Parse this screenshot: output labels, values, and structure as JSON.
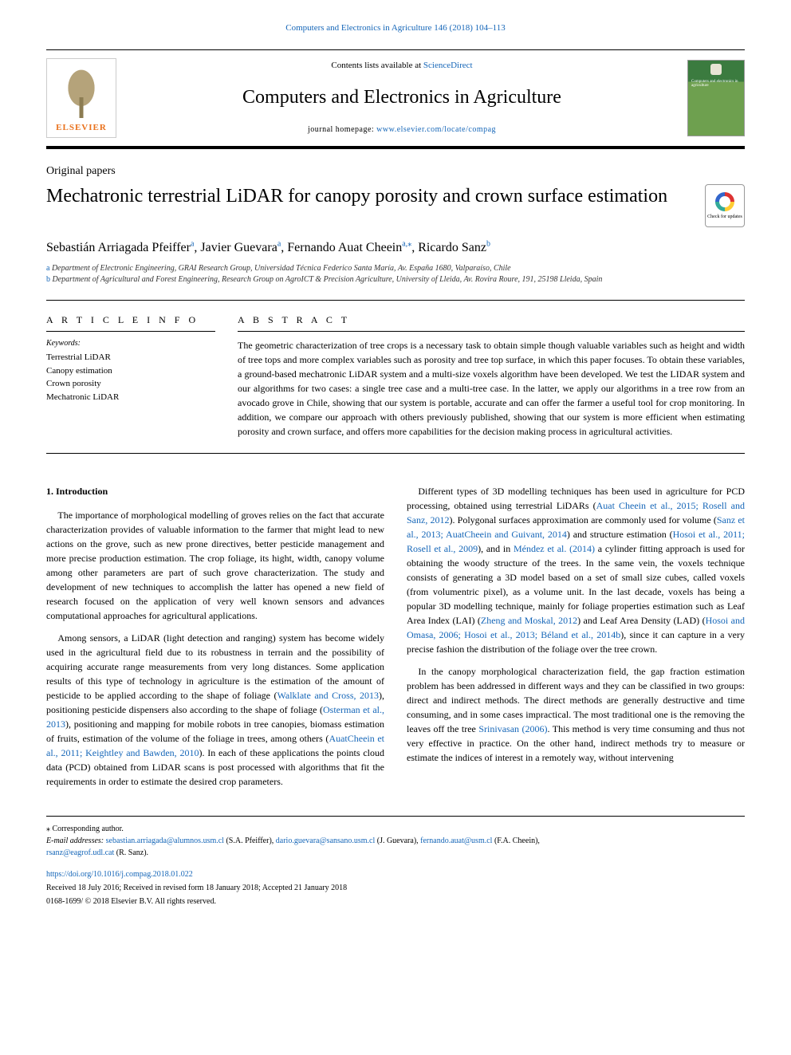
{
  "citation_line": "Computers and Electronics in Agriculture 146 (2018) 104–113",
  "header": {
    "contents_prefix": "Contents lists available at ",
    "contents_link": "ScienceDirect",
    "journal_title": "Computers and Electronics in Agriculture",
    "homepage_prefix": "journal homepage: ",
    "homepage_link": "www.elsevier.com/locate/compag",
    "elsevier_label": "ELSEVIER",
    "cover_text": "Computers and electronics in agriculture"
  },
  "article_type": "Original papers",
  "title": "Mechatronic terrestrial LiDAR for canopy porosity and crown surface estimation",
  "crossmark_label": "Check for updates",
  "authors_html": "Sebastián Arriagada Pfeiffer<sup class='sup'>a</sup>, Javier Guevara<sup class='sup'>a</sup>, Fernando Auat Cheein<sup class='sup'>a,</sup><sup class='sup'>⁎</sup>, Ricardo Sanz<sup class='sup'>b</sup>",
  "affiliations": {
    "a": "Department of Electronic Engineering, GRAI Research Group, Universidad Técnica Federico Santa María, Av. España 1680, Valparaíso, Chile",
    "b": "Department of Agricultural and Forest Engineering, Research Group on AgroICT & Precision Agriculture, University of Lleida, Av. Rovira Roure, 191, 25198 Lleida, Spain"
  },
  "info_heading": "A R T I C L E  I N F O",
  "keywords_label": "Keywords:",
  "keywords": [
    "Terrestrial LiDAR",
    "Canopy estimation",
    "Crown porosity",
    "Mechatronic LiDAR"
  ],
  "abstract_heading": "A B S T R A C T",
  "abstract": "The geometric characterization of tree crops is a necessary task to obtain simple though valuable variables such as height and width of tree tops and more complex variables such as porosity and tree top surface, in which this paper focuses. To obtain these variables, a ground-based mechatronic LiDAR system and a multi-size voxels algorithm have been developed. We test the LIDAR system and our algorithms for two cases: a single tree case and a multi-tree case. In the latter, we apply our algorithms in a tree row from an avocado grove in Chile, showing that our system is portable, accurate and can offer the farmer a useful tool for crop monitoring. In addition, we compare our approach with others previously published, showing that our system is more efficient when estimating porosity and crown surface, and offers more capabilities for the decision making process in agricultural activities.",
  "section1_heading": "1. Introduction",
  "para1": "The importance of morphological modelling of groves relies on the fact that accurate characterization provides of valuable information to the farmer that might lead to new actions on the grove, such as new prone directives, better pesticide management and more precise production estimation. The crop foliage, its hight, width, canopy volume among other parameters are part of such grove characterization. The study and development of new techniques to accomplish the latter has opened a new field of research focused on the application of very well known sensors and advances computational approaches for agricultural applications.",
  "para2_pre": "Among sensors, a LiDAR (light detection and ranging) system has become widely used in the agricultural field due to its robustness in terrain and the possibility of acquiring accurate range measurements from very long distances. Some application results of this type of technology in agriculture is the estimation of the amount of pesticide to be applied according to the shape of foliage (",
  "para2_c1": "Walklate and Cross, 2013",
  "para2_mid1": "), positioning pesticide dispensers also according to the shape of foliage (",
  "para2_c2": "Osterman et al., 2013",
  "para2_mid2": "), positioning and mapping for mobile robots in tree canopies, biomass estimation of fruits, estimation of the volume of the foliage in trees, among others (",
  "para2_c3": "AuatCheein et al., 2011; Keightley and Bawden, 2010",
  "para2_post": "). In each of these applications the points cloud data (PCD) obtained from LiDAR scans is post processed with algorithms that fit the requirements in order to estimate the desired crop parameters.",
  "para3_pre": "Different types of 3D modelling techniques has been used in agriculture for PCD processing, obtained using terrestrial LiDARs (",
  "para3_c1": "Auat Cheein et al., 2015; Rosell and Sanz, 2012",
  "para3_mid1": "). Polygonal surfaces approximation are commonly used for volume (",
  "para3_c2": "Sanz et al., 2013; AuatCheein and Guivant, 2014",
  "para3_mid2": ") and structure estimation (",
  "para3_c3": "Hosoi et al., 2011; Rosell et al., 2009",
  "para3_mid3": "), and in ",
  "para3_c4": "Méndez et al. (2014)",
  "para3_mid4": " a cylinder fitting approach is used for obtaining the woody structure of the trees. In the same vein, the voxels technique consists of generating a 3D model based on a set of small size cubes, called voxels (from volumentric pixel), as a volume unit. In the last decade, voxels has being a popular 3D modelling technique, mainly for foliage properties estimation such as Leaf Area Index (LAI) (",
  "para3_c5": "Zheng and Moskal, 2012",
  "para3_mid5": ") and Leaf Area Density (LAD) (",
  "para3_c6": "Hosoi and Omasa, 2006; Hosoi et al., 2013; Béland et al., 2014b",
  "para3_post": "), since it can capture in a very precise fashion the distribution of the foliage over the tree crown.",
  "para4_pre": "In the canopy morphological characterization field, the gap fraction estimation problem has been addressed in different ways and they can be classified in two groups: direct and indirect methods. The direct methods are generally destructive and time consuming, and in some cases impractical. The most traditional one is the removing the leaves off the tree ",
  "para4_c1": "Srinivasan (2006)",
  "para4_post": ". This method is very time consuming and thus not very effective in practice. On the other hand, indirect methods try to measure or estimate the indices of interest in a remotely way, without intervening",
  "footnotes": {
    "corr": "⁎ Corresponding author.",
    "email_label": "E-mail addresses: ",
    "emails": [
      {
        "addr": "sebastian.arriagada@alumnos.usm.cl",
        "who": " (S.A. Pfeiffer), "
      },
      {
        "addr": "dario.guevara@sansano.usm.cl",
        "who": " (J. Guevara), "
      },
      {
        "addr": "fernando.auat@usm.cl",
        "who": " (F.A. Cheein),"
      },
      {
        "addr": "rsanz@eagrof.udl.cat",
        "who": " (R. Sanz)."
      }
    ],
    "doi": "https://doi.org/10.1016/j.compag.2018.01.022",
    "history": "Received 18 July 2016; Received in revised form 18 January 2018; Accepted 21 January 2018",
    "copyright": "0168-1699/ © 2018 Elsevier B.V. All rights reserved."
  },
  "colors": {
    "link": "#1566b8",
    "elsevier_orange": "#e9711c",
    "cover_dark": "#3b7b3f",
    "cover_light": "#6ea04f"
  }
}
